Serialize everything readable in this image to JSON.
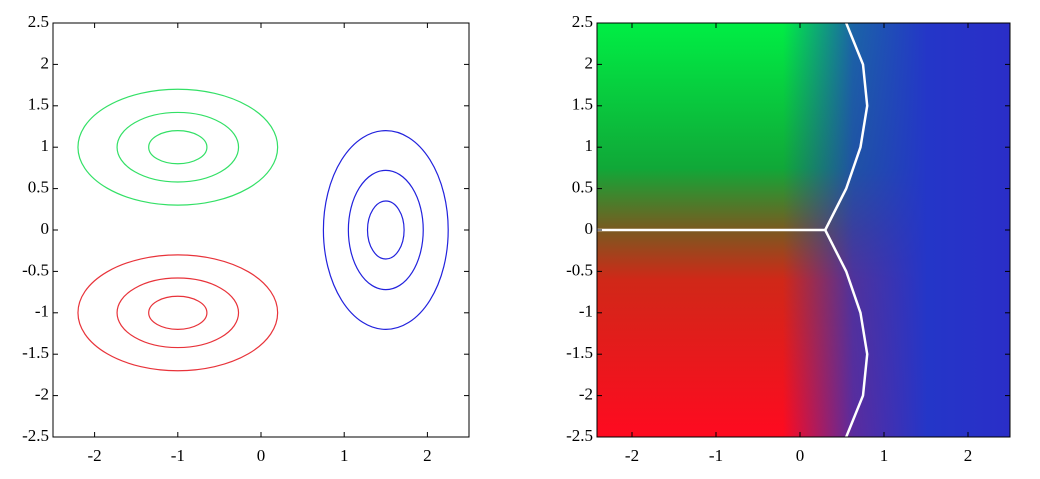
{
  "chart_data": [
    {
      "type": "contour",
      "xlim": [
        -2.5,
        2.5
      ],
      "ylim": [
        -2.5,
        2.5
      ],
      "xticks": [
        -2,
        -1,
        0,
        1,
        2
      ],
      "yticks": [
        -2.5,
        -2,
        -1.5,
        -1,
        -0.5,
        0,
        0.5,
        1,
        1.5,
        2,
        2.5
      ],
      "series": [
        {
          "color": "#33e066",
          "center": [
            -1,
            1
          ],
          "rx": [
            1.2,
            0.73,
            0.35
          ],
          "ry": [
            0.7,
            0.42,
            0.2
          ]
        },
        {
          "color": "#e8333a",
          "center": [
            -1,
            -1
          ],
          "rx": [
            1.2,
            0.73,
            0.35
          ],
          "ry": [
            0.7,
            0.42,
            0.2
          ]
        },
        {
          "color": "#2222dd",
          "center": [
            1.5,
            0
          ],
          "rx": [
            0.75,
            0.45,
            0.22
          ],
          "ry": [
            1.2,
            0.72,
            0.35
          ]
        }
      ]
    },
    {
      "type": "image",
      "xlim": [
        -2.5,
        2.5
      ],
      "ylim": [
        -2.5,
        2.5
      ],
      "xticks": [
        -2,
        -1,
        0,
        1,
        2
      ],
      "yticks": [
        -2.5,
        -2,
        -1.5,
        -1,
        -0.5,
        0,
        0.5,
        1,
        1.5,
        2,
        2.5
      ],
      "boundary_color": "#ffffff",
      "boundaries": [
        {
          "x": [
            -2.5,
            0.3
          ],
          "y": [
            0,
            0
          ]
        },
        {
          "x": [
            0.3,
            0.55,
            0.72,
            0.8,
            0.75,
            0.55
          ],
          "y": [
            0,
            0.5,
            1.0,
            1.5,
            2.0,
            2.5
          ]
        },
        {
          "x": [
            0.3,
            0.55,
            0.72,
            0.8,
            0.75,
            0.55
          ],
          "y": [
            0,
            -0.5,
            -1.0,
            -1.5,
            -2.0,
            -2.5
          ]
        }
      ]
    }
  ]
}
